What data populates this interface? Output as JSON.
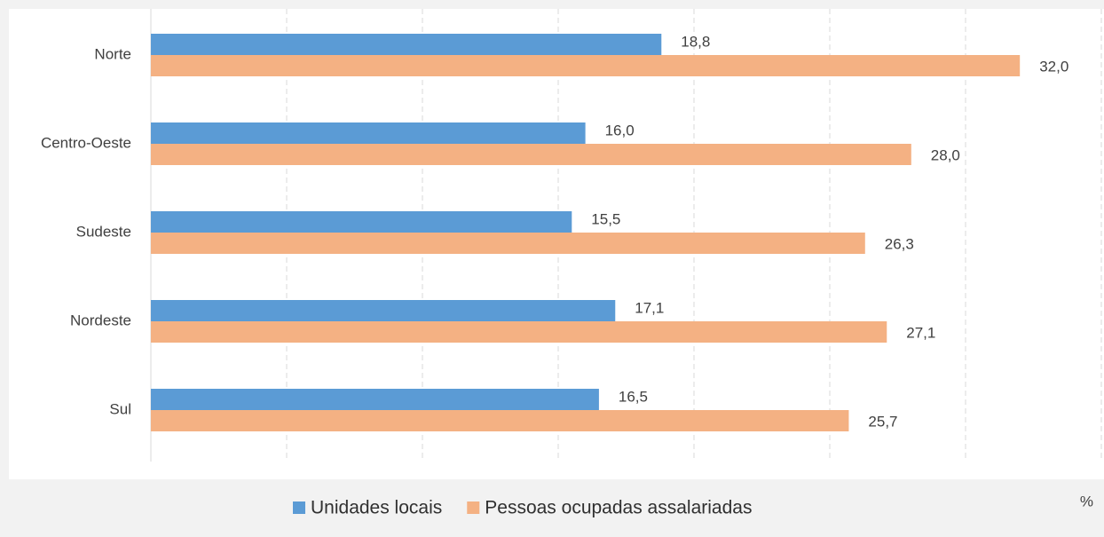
{
  "chart_data": {
    "type": "barh",
    "categories": [
      "Norte",
      "Centro-Oeste",
      "Sudeste",
      "Nordeste",
      "Sul"
    ],
    "series": [
      {
        "name": "Unidades locais",
        "color": "#5b9bd5",
        "values": [
          18.8,
          16.0,
          15.5,
          17.1,
          16.5
        ],
        "value_labels": [
          "18,8",
          "16,0",
          "15,5",
          "17,1",
          "16,5"
        ]
      },
      {
        "name": "Pessoas ocupadas assalariadas",
        "color": "#f4b183",
        "values": [
          32.0,
          28.0,
          26.3,
          27.1,
          25.7
        ],
        "value_labels": [
          "32,0",
          "28,0",
          "26,3",
          "27,1",
          "25,7"
        ]
      }
    ],
    "xlim": [
      0,
      35
    ],
    "xticks": [
      0,
      5,
      10,
      15,
      20,
      25,
      30,
      35
    ],
    "grid": true,
    "xlabel": "%"
  }
}
